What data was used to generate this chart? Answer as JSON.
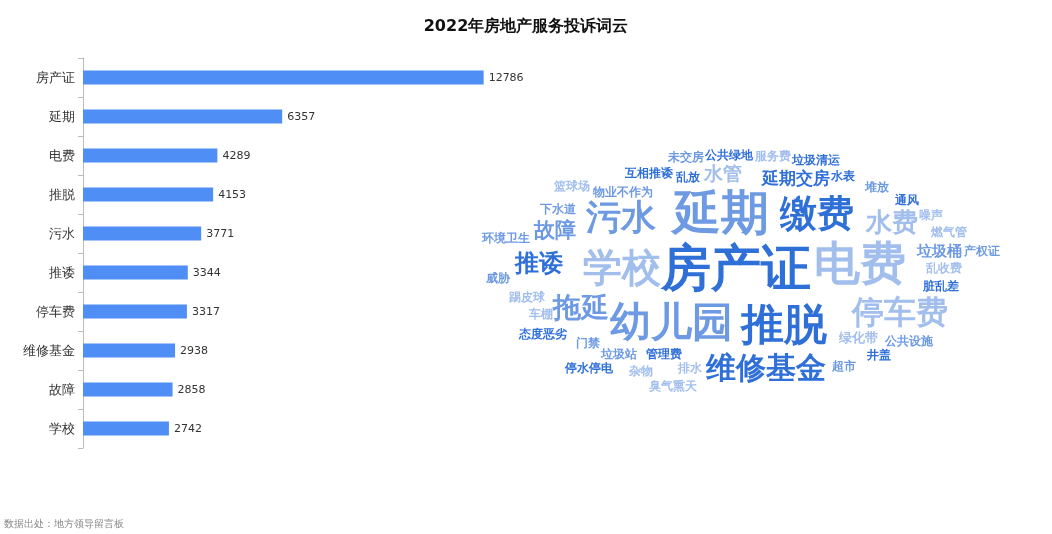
{
  "chart_data": [
    {
      "type": "bar",
      "title": "2022年房地产服务投诉词云",
      "orientation": "horizontal",
      "data_labels": true,
      "color": "#4e8ef5",
      "categories": [
        "房产证",
        "延期",
        "电费",
        "推脱",
        "污水",
        "推诿",
        "停车费",
        "维修基金",
        "故障",
        "学校"
      ],
      "values": [
        12786,
        6357,
        4289,
        4153,
        3771,
        3344,
        3317,
        2938,
        2858,
        2742
      ],
      "annotations": [
        "数据出处：地方领导留言板"
      ]
    },
    {
      "type": "other",
      "color": "#2f6fd8",
      "annotations": [
        "房产证",
        "延期",
        "电费",
        "推脱",
        "幼儿园",
        "学校",
        "缴费",
        "污水",
        "停车费",
        "维修基金",
        "拖延",
        "水费",
        "推诿",
        "故障",
        "水管",
        "延期交房",
        "垃圾桶",
        "绿化带",
        "管理费",
        "物业不作为",
        "乱收费",
        "脏乱差",
        "垃圾站",
        "踢皮球",
        "乱放",
        "下水道",
        "排水",
        "互相推诿",
        "门禁",
        "车棚",
        "水表",
        "堆放",
        "燃气管",
        "通风",
        "公共设施",
        "噪声",
        "井盖",
        "超市",
        "杂物",
        "态度恶劣",
        "环境卫生",
        "篮球场",
        "公共绿地",
        "未交房",
        "服务费",
        "垃圾清运",
        "威胁",
        "臭气熏天",
        "停水停电",
        "产权证"
      ]
    }
  ]
}
